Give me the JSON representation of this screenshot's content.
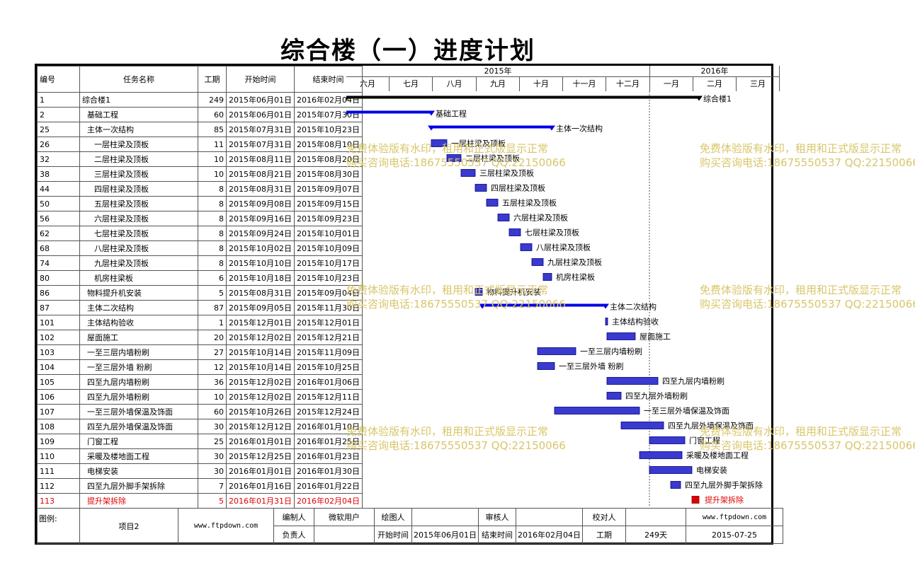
{
  "title": "综合楼（一）进度计划",
  "columns": {
    "id": "编号",
    "name": "任务名称",
    "duration": "工期",
    "start": "开始时间",
    "end": "结束时间"
  },
  "timeline": {
    "years": [
      "2015年",
      "2016年"
    ],
    "months": [
      "六月",
      "七月",
      "八月",
      "九月",
      "十月",
      "十一月",
      "十二月",
      "一月",
      "二月",
      "三月"
    ]
  },
  "chart_data": {
    "type": "gantt",
    "title": "综合楼（一）进度计划",
    "x_range": [
      "2015-06-01",
      "2016-03-31"
    ],
    "colors": {
      "task": "#3a3acf",
      "summary_project": "#000000",
      "summary": "#0000e6",
      "critical": "#e00000"
    },
    "tasks": [
      {
        "id": "1",
        "name": "综合楼1",
        "duration": "249",
        "start": "2015年06月01日",
        "end": "2016年02月04日",
        "level": 0,
        "kind": "project",
        "s": "2015-06-01",
        "e": "2016-02-04",
        "label": "综合楼1"
      },
      {
        "id": "2",
        "name": "基础工程",
        "duration": "60",
        "start": "2015年06月01日",
        "end": "2015年07月30日",
        "level": 1,
        "kind": "summary",
        "s": "2015-06-01",
        "e": "2015-07-30",
        "label": "基础工程"
      },
      {
        "id": "25",
        "name": "主体一次结构",
        "duration": "85",
        "start": "2015年07月31日",
        "end": "2015年10月23日",
        "level": 1,
        "kind": "summary",
        "s": "2015-07-31",
        "e": "2015-10-23",
        "label": "主体一次结构"
      },
      {
        "id": "26",
        "name": "一层柱梁及顶板",
        "duration": "11",
        "start": "2015年07月31日",
        "end": "2015年08月10日",
        "level": 2,
        "kind": "task",
        "s": "2015-07-31",
        "e": "2015-08-10",
        "label": "一层柱梁及顶板"
      },
      {
        "id": "32",
        "name": "二层柱梁及顶板",
        "duration": "10",
        "start": "2015年08月11日",
        "end": "2015年08月20日",
        "level": 2,
        "kind": "task",
        "s": "2015-08-11",
        "e": "2015-08-20",
        "label": "二层柱梁及顶板"
      },
      {
        "id": "38",
        "name": "三层柱梁及顶板",
        "duration": "10",
        "start": "2015年08月21日",
        "end": "2015年08月30日",
        "level": 2,
        "kind": "task",
        "s": "2015-08-21",
        "e": "2015-08-30",
        "label": "三层柱梁及顶板"
      },
      {
        "id": "44",
        "name": "四层柱梁及顶板",
        "duration": "8",
        "start": "2015年08月31日",
        "end": "2015年09月07日",
        "level": 2,
        "kind": "task",
        "s": "2015-08-31",
        "e": "2015-09-07",
        "label": "四层柱梁及顶板"
      },
      {
        "id": "50",
        "name": "五层柱梁及顶板",
        "duration": "8",
        "start": "2015年09月08日",
        "end": "2015年09月15日",
        "level": 2,
        "kind": "task",
        "s": "2015-09-08",
        "e": "2015-09-15",
        "label": "五层柱梁及顶板"
      },
      {
        "id": "56",
        "name": "六层柱梁及顶板",
        "duration": "8",
        "start": "2015年09月16日",
        "end": "2015年09月23日",
        "level": 2,
        "kind": "task",
        "s": "2015-09-16",
        "e": "2015-09-23",
        "label": "六层柱梁及顶板"
      },
      {
        "id": "62",
        "name": "七层柱梁及顶板",
        "duration": "8",
        "start": "2015年09月24日",
        "end": "2015年10月01日",
        "level": 2,
        "kind": "task",
        "s": "2015-09-24",
        "e": "2015-10-01",
        "label": "七层柱梁及顶板"
      },
      {
        "id": "68",
        "name": "八层柱梁及顶板",
        "duration": "8",
        "start": "2015年10月02日",
        "end": "2015年10月09日",
        "level": 2,
        "kind": "task",
        "s": "2015-10-02",
        "e": "2015-10-09",
        "label": "八层柱梁及顶板"
      },
      {
        "id": "74",
        "name": "九层柱梁及顶板",
        "duration": "8",
        "start": "2015年10月10日",
        "end": "2015年10月17日",
        "level": 2,
        "kind": "task",
        "s": "2015-10-10",
        "e": "2015-10-17",
        "label": "九层柱梁及顶板"
      },
      {
        "id": "80",
        "name": "机房柱梁板",
        "duration": "6",
        "start": "2015年10月18日",
        "end": "2015年10月23日",
        "level": 2,
        "kind": "task",
        "s": "2015-10-18",
        "e": "2015-10-23",
        "label": "机房柱梁板"
      },
      {
        "id": "86",
        "name": "物料提升机安装",
        "duration": "5",
        "start": "2015年08月31日",
        "end": "2015年09月04日",
        "level": 1,
        "kind": "task",
        "s": "2015-08-31",
        "e": "2015-09-04",
        "label": "物料提升机安装"
      },
      {
        "id": "87",
        "name": "主体二次结构",
        "duration": "87",
        "start": "2015年09月05日",
        "end": "2015年11月30日",
        "level": 1,
        "kind": "summary",
        "s": "2015-09-05",
        "e": "2015-11-30",
        "label": "主体二次结构"
      },
      {
        "id": "101",
        "name": "主体结构验收",
        "duration": "1",
        "start": "2015年12月01日",
        "end": "2015年12月01日",
        "level": 1,
        "kind": "task",
        "s": "2015-12-01",
        "e": "2015-12-01",
        "label": "主体结构验收"
      },
      {
        "id": "102",
        "name": "屋面施工",
        "duration": "20",
        "start": "2015年12月02日",
        "end": "2015年12月21日",
        "level": 1,
        "kind": "task",
        "s": "2015-12-02",
        "e": "2015-12-21",
        "label": "屋面施工"
      },
      {
        "id": "103",
        "name": "一至三层内墙粉刷",
        "duration": "27",
        "start": "2015年10月14日",
        "end": "2015年11月09日",
        "level": 1,
        "kind": "task",
        "s": "2015-10-14",
        "e": "2015-11-09",
        "label": "一至三层内墙粉刷"
      },
      {
        "id": "104",
        "name": "一至三层外墙 粉刷",
        "duration": "12",
        "start": "2015年10月14日",
        "end": "2015年10月25日",
        "level": 1,
        "kind": "task",
        "s": "2015-10-14",
        "e": "2015-10-25",
        "label": "一至三层外墙 粉刷"
      },
      {
        "id": "105",
        "name": "四至九层内墙粉刷",
        "duration": "36",
        "start": "2015年12月02日",
        "end": "2016年01月06日",
        "level": 1,
        "kind": "task",
        "s": "2015-12-02",
        "e": "2016-01-06",
        "label": "四至九层内墙粉刷"
      },
      {
        "id": "106",
        "name": "四至九层外墙粉刷",
        "duration": "10",
        "start": "2015年12月02日",
        "end": "2015年12月11日",
        "level": 1,
        "kind": "task",
        "s": "2015-12-02",
        "e": "2015-12-11",
        "label": "四至九层外墙粉刷"
      },
      {
        "id": "107",
        "name": "一至三层外墙保温及饰面",
        "duration": "60",
        "start": "2015年10月26日",
        "end": "2015年12月24日",
        "level": 1,
        "kind": "task",
        "s": "2015-10-26",
        "e": "2015-12-24",
        "label": "一至三层外墙保温及饰面"
      },
      {
        "id": "108",
        "name": "四至九层外墙保温及饰面",
        "duration": "30",
        "start": "2015年12月12日",
        "end": "2016年01月10日",
        "level": 1,
        "kind": "task",
        "s": "2015-12-12",
        "e": "2016-01-10",
        "label": "四至九层外墙保温及饰面"
      },
      {
        "id": "109",
        "name": "门窗工程",
        "duration": "25",
        "start": "2016年01月01日",
        "end": "2016年01月25日",
        "level": 1,
        "kind": "task",
        "s": "2016-01-01",
        "e": "2016-01-25",
        "label": "门窗工程"
      },
      {
        "id": "110",
        "name": "采暖及楼地面工程",
        "duration": "30",
        "start": "2015年12月25日",
        "end": "2016年01月23日",
        "level": 1,
        "kind": "task",
        "s": "2015-12-25",
        "e": "2016-01-23",
        "label": "采暖及楼地面工程"
      },
      {
        "id": "111",
        "name": "电梯安装",
        "duration": "30",
        "start": "2016年01月01日",
        "end": "2016年01月30日",
        "level": 1,
        "kind": "task",
        "s": "2016-01-01",
        "e": "2016-01-30",
        "label": "电梯安装"
      },
      {
        "id": "112",
        "name": "四至九层外脚手架拆除",
        "duration": "7",
        "start": "2016年01月16日",
        "end": "2016年01月22日",
        "level": 1,
        "kind": "task",
        "s": "2016-01-16",
        "e": "2016-01-22",
        "label": "四至九层外脚手架拆除"
      },
      {
        "id": "113",
        "name": "提升架拆除",
        "duration": "5",
        "start": "2016年01月31日",
        "end": "2016年02月04日",
        "level": 1,
        "kind": "critical",
        "s": "2016-01-31",
        "e": "2016-02-04",
        "label": "提升架拆除"
      }
    ]
  },
  "footer": {
    "legend_label": "图例:",
    "project_name": "项目2",
    "website": "www.ftpdown.com",
    "editor_label": "编制人",
    "editor_value": "微软用户",
    "drafter_label": "绘图人",
    "drafter_value": "",
    "reviewer_label": "审核人",
    "reviewer_value": "",
    "checker_label": "校对人",
    "checker_value": "",
    "website2": "www.ftpdown.com",
    "manager_label": "负责人",
    "manager_value": "",
    "start_label": "开始时间",
    "start_value": "2015年06月01日",
    "end_label": "结束时间",
    "end_value": "2016年02月04日",
    "duration_label": "工期",
    "duration_value": "249天",
    "date": "2015-07-25"
  },
  "watermark": {
    "line1": "免费体验版有水印，租用和正式版显示正常",
    "line2": "购买咨询电话:18675550537 QQ:22150066"
  }
}
